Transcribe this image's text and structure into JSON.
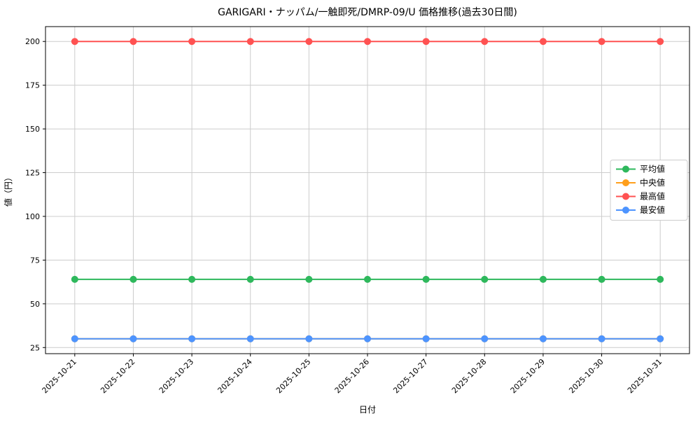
{
  "chart_data": {
    "type": "line",
    "title": "GARIGARI・ナッパム/一触即死/DMRP-09/U 価格推移(過去30日間)",
    "xlabel": "日付",
    "ylabel": "値（円）",
    "x": [
      "2025-10-21",
      "2025-10-22",
      "2025-10-23",
      "2025-10-24",
      "2025-10-25",
      "2025-10-26",
      "2025-10-27",
      "2025-10-28",
      "2025-10-29",
      "2025-10-30",
      "2025-10-31"
    ],
    "series": [
      {
        "name": "平均値",
        "color": "#2eb85c",
        "values": [
          64,
          64,
          64,
          64,
          64,
          64,
          64,
          64,
          64,
          64,
          64
        ]
      },
      {
        "name": "中央値",
        "color": "#ff9f1c",
        "values": [
          30,
          30,
          30,
          30,
          30,
          30,
          30,
          30,
          30,
          30,
          30
        ]
      },
      {
        "name": "最高値",
        "color": "#ff5252",
        "values": [
          200,
          200,
          200,
          200,
          200,
          200,
          200,
          200,
          200,
          200,
          200
        ]
      },
      {
        "name": "最安値",
        "color": "#4d94ff",
        "values": [
          30,
          30,
          30,
          30,
          30,
          30,
          30,
          30,
          30,
          30,
          30
        ]
      }
    ],
    "yticks": [
      25,
      50,
      75,
      100,
      125,
      150,
      175,
      200
    ],
    "ylim": [
      21.5,
      208.5
    ],
    "grid": true,
    "legend_position": "right",
    "notes": "median line (中央値) is hidden beneath the minimum line (最安値) at value 30"
  }
}
